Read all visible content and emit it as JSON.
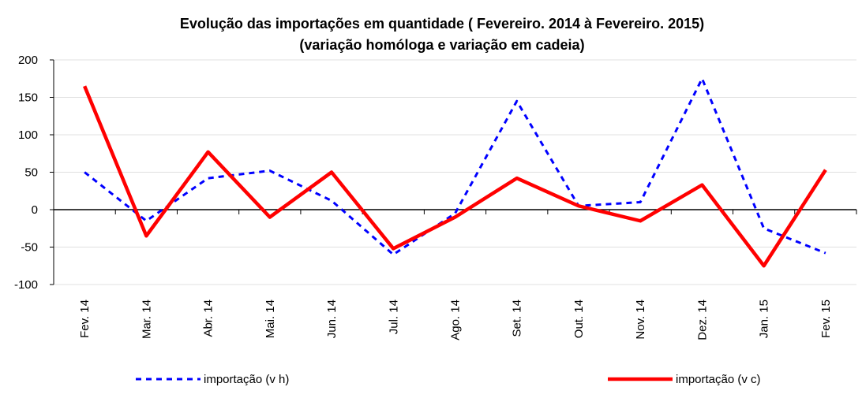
{
  "chart_data": {
    "type": "line",
    "title": "Evolução das importações em quantidade ( Fevereiro. 2014 à Fevereiro. 2015)",
    "subtitle": "(variação homóloga e variação em cadeia)",
    "categories": [
      "Fev. 14",
      "Mar. 14",
      "Abr. 14",
      "Mai. 14",
      "Jun. 14",
      "Jul. 14",
      "Ago. 14",
      "Set. 14",
      "Out. 14",
      "Nov. 14",
      "Dez. 14",
      "Jan. 15",
      "Fev. 15"
    ],
    "series": [
      {
        "name": "importação (v h)",
        "color": "#0000ff",
        "dashed": true,
        "values": [
          50,
          -15,
          42,
          52,
          12,
          -60,
          -5,
          145,
          5,
          10,
          175,
          -25,
          -58
        ]
      },
      {
        "name": "importação (v c)",
        "color": "#ff0000",
        "dashed": false,
        "values": [
          165,
          -35,
          77,
          -10,
          50,
          -52,
          -10,
          42,
          5,
          -15,
          33,
          -75,
          53
        ]
      }
    ],
    "ylim": [
      -100,
      200
    ],
    "yticks": [
      -100,
      -50,
      0,
      50,
      100,
      150,
      200
    ],
    "grid": true
  }
}
